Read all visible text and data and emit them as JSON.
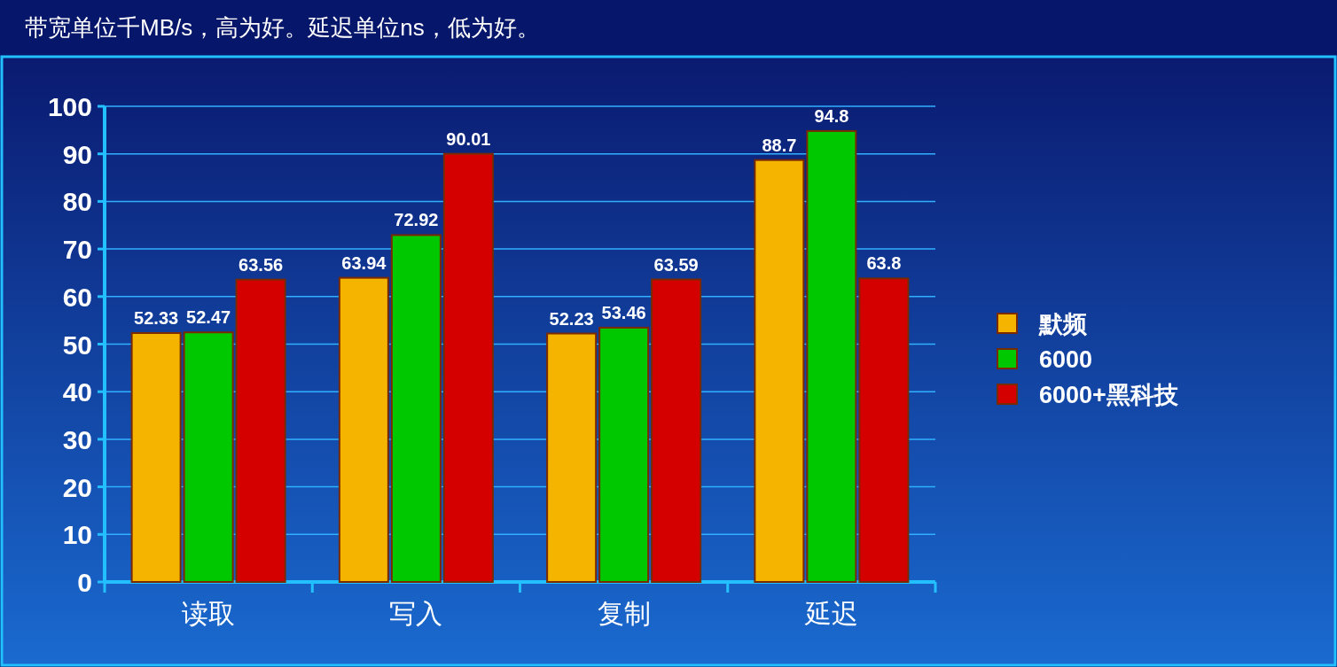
{
  "chart_data": {
    "type": "bar",
    "title": "带宽单位千MB/s，高为好。延迟单位ns，低为好。",
    "categories": [
      "读取",
      "写入",
      "复制",
      "延迟"
    ],
    "series": [
      {
        "name": "默频",
        "color": "#f5b400",
        "values": [
          52.33,
          63.94,
          52.23,
          88.7
        ]
      },
      {
        "name": "6000",
        "color": "#00c800",
        "values": [
          52.47,
          72.92,
          53.46,
          94.8
        ]
      },
      {
        "name": "6000+黑科技",
        "color": "#d40000",
        "values": [
          63.56,
          90.01,
          63.59,
          63.8
        ]
      }
    ],
    "ylim": [
      0,
      100
    ],
    "yticks": [
      0,
      10,
      20,
      30,
      40,
      50,
      60,
      70,
      80,
      90,
      100
    ],
    "grid": "y",
    "legend": "right",
    "data_labels": true
  }
}
